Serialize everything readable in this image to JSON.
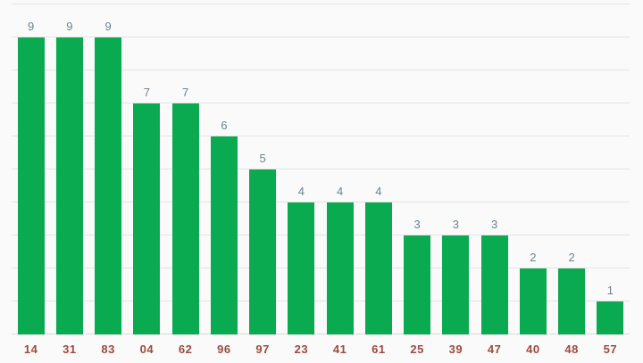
{
  "chart_data": {
    "type": "bar",
    "title": "",
    "xlabel": "",
    "ylabel": "",
    "categories": [
      "14",
      "31",
      "83",
      "04",
      "62",
      "96",
      "97",
      "23",
      "41",
      "61",
      "25",
      "39",
      "47",
      "40",
      "48",
      "57"
    ],
    "values": [
      9,
      9,
      9,
      7,
      7,
      6,
      5,
      4,
      4,
      4,
      3,
      3,
      3,
      2,
      2,
      1
    ],
    "ylim": [
      0,
      10
    ],
    "gridline_step": 1,
    "grid": true,
    "legend_position": "none",
    "annotations": [
      9,
      9,
      9,
      7,
      7,
      6,
      5,
      4,
      4,
      4,
      3,
      3,
      3,
      2,
      2,
      1
    ]
  },
  "colors": {
    "bar": "#0aab50",
    "annotation_text": "#6c8394",
    "axis_label_text": "#a04a3b",
    "gridline": "#e3e3e3",
    "baseline": "#d9d9d9",
    "background": "#fafafa"
  }
}
